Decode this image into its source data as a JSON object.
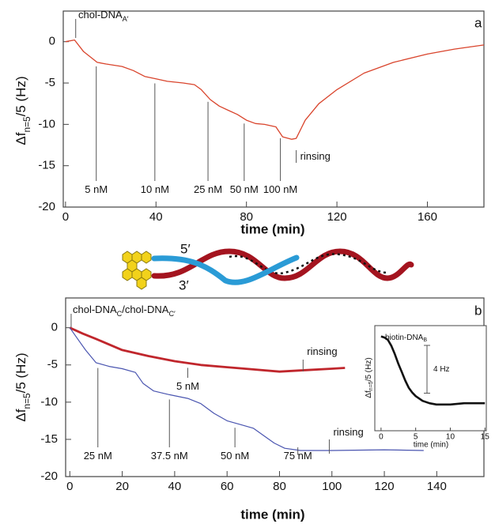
{
  "chart_data": [
    {
      "type": "line",
      "panel": "a",
      "xlabel": "time (min)",
      "ylabel": [
        "Δf",
        "n=5",
        "/5 (Hz)"
      ],
      "xlim": [
        -1,
        185
      ],
      "ylim": [
        -20,
        3.7
      ],
      "xticks": [
        0,
        40,
        80,
        120,
        160
      ],
      "yticks": [
        -20,
        -15,
        -10,
        -5,
        0
      ],
      "series": [
        {
          "color": "#d9442c",
          "x": [
            0,
            4,
            8,
            14,
            18,
            25,
            30,
            35,
            40,
            45,
            52,
            57,
            60,
            64,
            68,
            72,
            76,
            80,
            84,
            88,
            93,
            96,
            100,
            102,
            106,
            112,
            120,
            132,
            145,
            160,
            172,
            185
          ],
          "values": [
            0,
            0.2,
            -1.2,
            -2.5,
            -2.7,
            -3,
            -3.5,
            -4.2,
            -4.5,
            -4.8,
            -5,
            -5.2,
            -5.8,
            -7,
            -7.8,
            -8.3,
            -8.8,
            -9.5,
            -9.9,
            -10,
            -10.3,
            -11.5,
            -11.8,
            -11.7,
            -9.5,
            -7.5,
            -5.8,
            -3.8,
            -2.5,
            -1.5,
            -0.9,
            -0.4
          ]
        }
      ],
      "annotations": [
        {
          "x": 4.5,
          "parts": [
            "chol-DNA",
            "A′"
          ]
        },
        {
          "x": 13.6,
          "parts": [
            "5 nM"
          ]
        },
        {
          "x": 39.5,
          "parts": [
            "10 nM"
          ]
        },
        {
          "x": 63,
          "parts": [
            "25 nM"
          ]
        },
        {
          "x": 79,
          "parts": [
            "50 nM"
          ]
        },
        {
          "x": 95,
          "parts": [
            "100 nM"
          ]
        },
        {
          "x": 102,
          "parts": [
            "rinsing"
          ]
        }
      ]
    },
    {
      "type": "line",
      "panel": "b",
      "xlabel": "time (min)",
      "ylabel": [
        "Δf",
        "n=5",
        "/5 (Hz)"
      ],
      "xlim": [
        -1.6,
        158
      ],
      "ylim": [
        -20,
        4
      ],
      "xticks": [
        0,
        20,
        40,
        60,
        80,
        100,
        120,
        140
      ],
      "yticks": [
        -20,
        -15,
        -10,
        -5,
        0
      ],
      "series": [
        {
          "color": "#c0262c",
          "x": [
            0,
            5,
            10,
            20,
            30,
            40,
            50,
            60,
            70,
            80,
            90,
            100,
            105
          ],
          "values": [
            0,
            -0.8,
            -1.5,
            -3,
            -3.8,
            -4.5,
            -5,
            -5.3,
            -5.6,
            -5.9,
            -5.7,
            -5.5,
            -5.4
          ]
        },
        {
          "color": "#4a55b0",
          "x": [
            0,
            3,
            6,
            10,
            15,
            20,
            25,
            28,
            32,
            38,
            45,
            50,
            55,
            60,
            65,
            70,
            74,
            78,
            82,
            88,
            100,
            120,
            135
          ],
          "values": [
            0,
            -1.5,
            -3,
            -4.7,
            -5.2,
            -5.5,
            -6,
            -7.5,
            -8.5,
            -9,
            -9.5,
            -10.2,
            -11.5,
            -12.5,
            -13,
            -13.5,
            -14.5,
            -15.5,
            -16.2,
            -16.5,
            -16.5,
            -16.4,
            -16.5
          ]
        }
      ],
      "annotations": [
        {
          "x": 0.5,
          "parts": [
            "chol-DNA",
            "C",
            "/chol-DNA",
            "C′"
          ]
        },
        {
          "x": 89,
          "parts": [
            "rinsing"
          ]
        },
        {
          "x": 45,
          "parts": [
            "5 nM"
          ]
        },
        {
          "x": 10.7,
          "parts": [
            "25 nM"
          ]
        },
        {
          "x": 38,
          "parts": [
            "37.5 nM"
          ]
        },
        {
          "x": 63,
          "parts": [
            "50 nM"
          ]
        },
        {
          "x": 87,
          "parts": [
            "75 nM"
          ]
        },
        {
          "x": 99,
          "parts": [
            "rinsing"
          ]
        }
      ]
    },
    {
      "type": "line",
      "xlabel": "time (min)",
      "ylabel": [
        "Δf",
        "n=5",
        "/5 (Hz)"
      ],
      "xlim": [
        -0.9,
        15.2
      ],
      "ylim": [
        -7.9,
        0.9
      ],
      "xticks": [
        0,
        5,
        10,
        15
      ],
      "series": [
        {
          "color": "#111111",
          "x": [
            0,
            0.5,
            1,
            1.5,
            2,
            2.5,
            3,
            3.5,
            4,
            4.5,
            5,
            6,
            7,
            8,
            10,
            12,
            14,
            15
          ],
          "values": [
            0,
            -0.1,
            -0.3,
            -0.8,
            -1.5,
            -2.3,
            -3,
            -3.7,
            -4.3,
            -4.7,
            -5,
            -5.4,
            -5.6,
            -5.7,
            -5.7,
            -5.6,
            -5.6,
            -5.6
          ]
        }
      ],
      "annotations": [
        {
          "x": 1,
          "parts": [
            "biotin-DNA",
            "B"
          ]
        }
      ],
      "scalebar": {
        "value": 4,
        "label": "4 Hz"
      }
    }
  ],
  "schematic": {
    "labels": [
      "5′",
      "3′"
    ]
  }
}
